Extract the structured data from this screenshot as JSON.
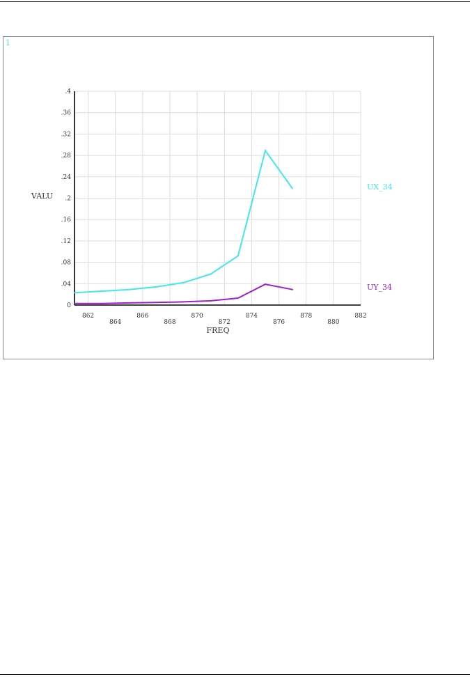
{
  "window_number": "1",
  "chart_data": {
    "type": "line",
    "title": "",
    "xlabel": "FREQ",
    "ylabel": "VALU",
    "xlim": [
      861,
      882
    ],
    "ylim": [
      0,
      0.4
    ],
    "grid": true,
    "x_ticks": [
      862,
      864,
      866,
      868,
      870,
      872,
      874,
      876,
      878,
      880,
      882
    ],
    "x_tick_labels": [
      "862",
      "864",
      "866",
      "868",
      "870",
      "872",
      "874",
      "876",
      "878",
      "880",
      "882"
    ],
    "y_ticks": [
      0,
      0.04,
      0.08,
      0.12,
      0.16,
      0.2,
      0.24,
      0.28,
      0.32,
      0.36,
      0.4
    ],
    "y_tick_labels": [
      "0",
      ".04",
      ".08",
      ".12",
      ".16",
      ".2",
      ".24",
      ".28",
      ".32",
      ".36",
      ".4"
    ],
    "legend_placement": "right",
    "x": [
      861,
      863,
      865,
      867,
      869,
      871,
      873,
      875,
      877
    ],
    "series": [
      {
        "name": "UX_34",
        "color": "#40e8e8",
        "values": [
          0.023,
          0.026,
          0.029,
          0.034,
          0.042,
          0.058,
          0.092,
          0.289,
          0.218
        ]
      },
      {
        "name": "UY_34",
        "color": "#a020c8",
        "values": [
          0.003,
          0.003,
          0.004,
          0.005,
          0.006,
          0.008,
          0.013,
          0.039,
          0.029
        ]
      }
    ]
  }
}
